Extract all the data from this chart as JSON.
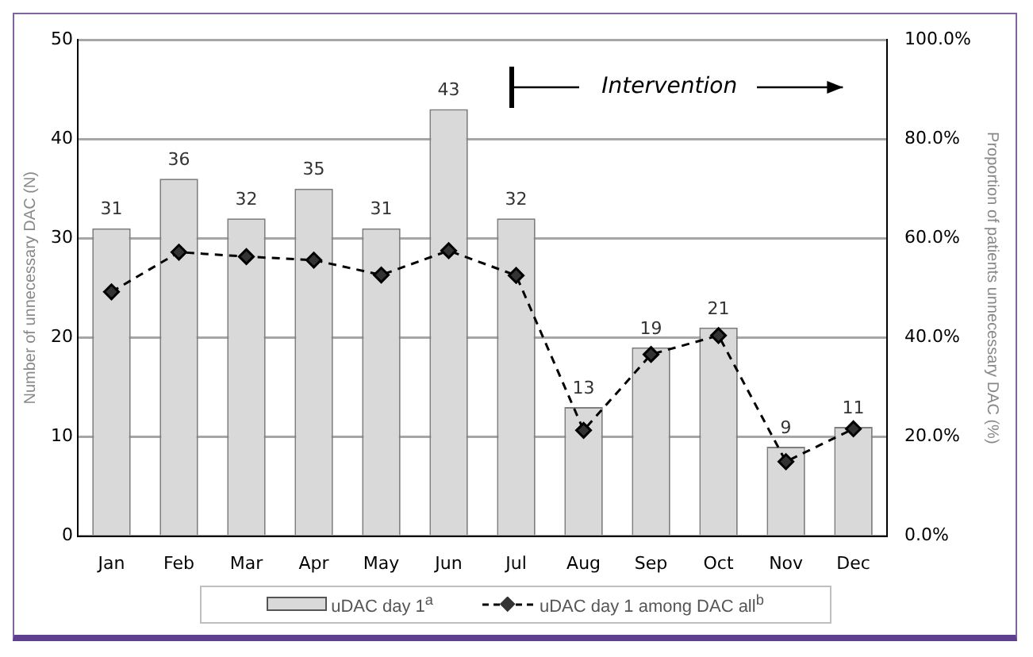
{
  "chart_data": {
    "type": "bar",
    "categories": [
      "Jan",
      "Feb",
      "Mar",
      "Apr",
      "May",
      "Jun",
      "Jul",
      "Aug",
      "Sep",
      "Oct",
      "Nov",
      "Dec"
    ],
    "series": [
      {
        "name": "uDAC day 1$^{a}$",
        "color": "#d9d9d9",
        "values": [
          31,
          36,
          32,
          35,
          31,
          43,
          32,
          13,
          19,
          21,
          9,
          11
        ],
        "value_labels": [
          "31",
          "36",
          "32",
          "35",
          "31",
          "43",
          "32",
          "13",
          "19",
          "21",
          "9",
          "11"
        ]
      },
      {
        "name": "uDAC day 1 among DAC all$^{b}$",
        "type": "line",
        "axis": "y2",
        "color": "#000000",
        "marker": "diamond",
        "line_style": "dashed",
        "values": [
          49.2,
          57.2,
          56.3,
          55.6,
          52.6,
          57.5,
          52.5,
          21.3,
          36.6,
          40.4,
          15.0,
          21.6
        ]
      }
    ],
    "ylabel": "Number of unnecessary DAC (N)",
    "y2label": "Proportion of patients unnecessary DAC (%)",
    "ylim": [
      0,
      50
    ],
    "yticks": [
      0,
      10,
      20,
      30,
      40,
      50
    ],
    "y2lim": [
      0,
      100
    ],
    "y2ticks": [
      {
        "value": 0,
        "label": "0.0%"
      },
      {
        "value": 20,
        "label": "20.0%"
      },
      {
        "value": 40,
        "label": "40.0%"
      },
      {
        "value": 60,
        "label": "60.0%"
      },
      {
        "value": 80,
        "label": "80.0%"
      },
      {
        "value": 100,
        "label": "100.0%"
      }
    ],
    "annotations": [
      "Intervention"
    ],
    "grid": "y",
    "legend": "bottom"
  }
}
